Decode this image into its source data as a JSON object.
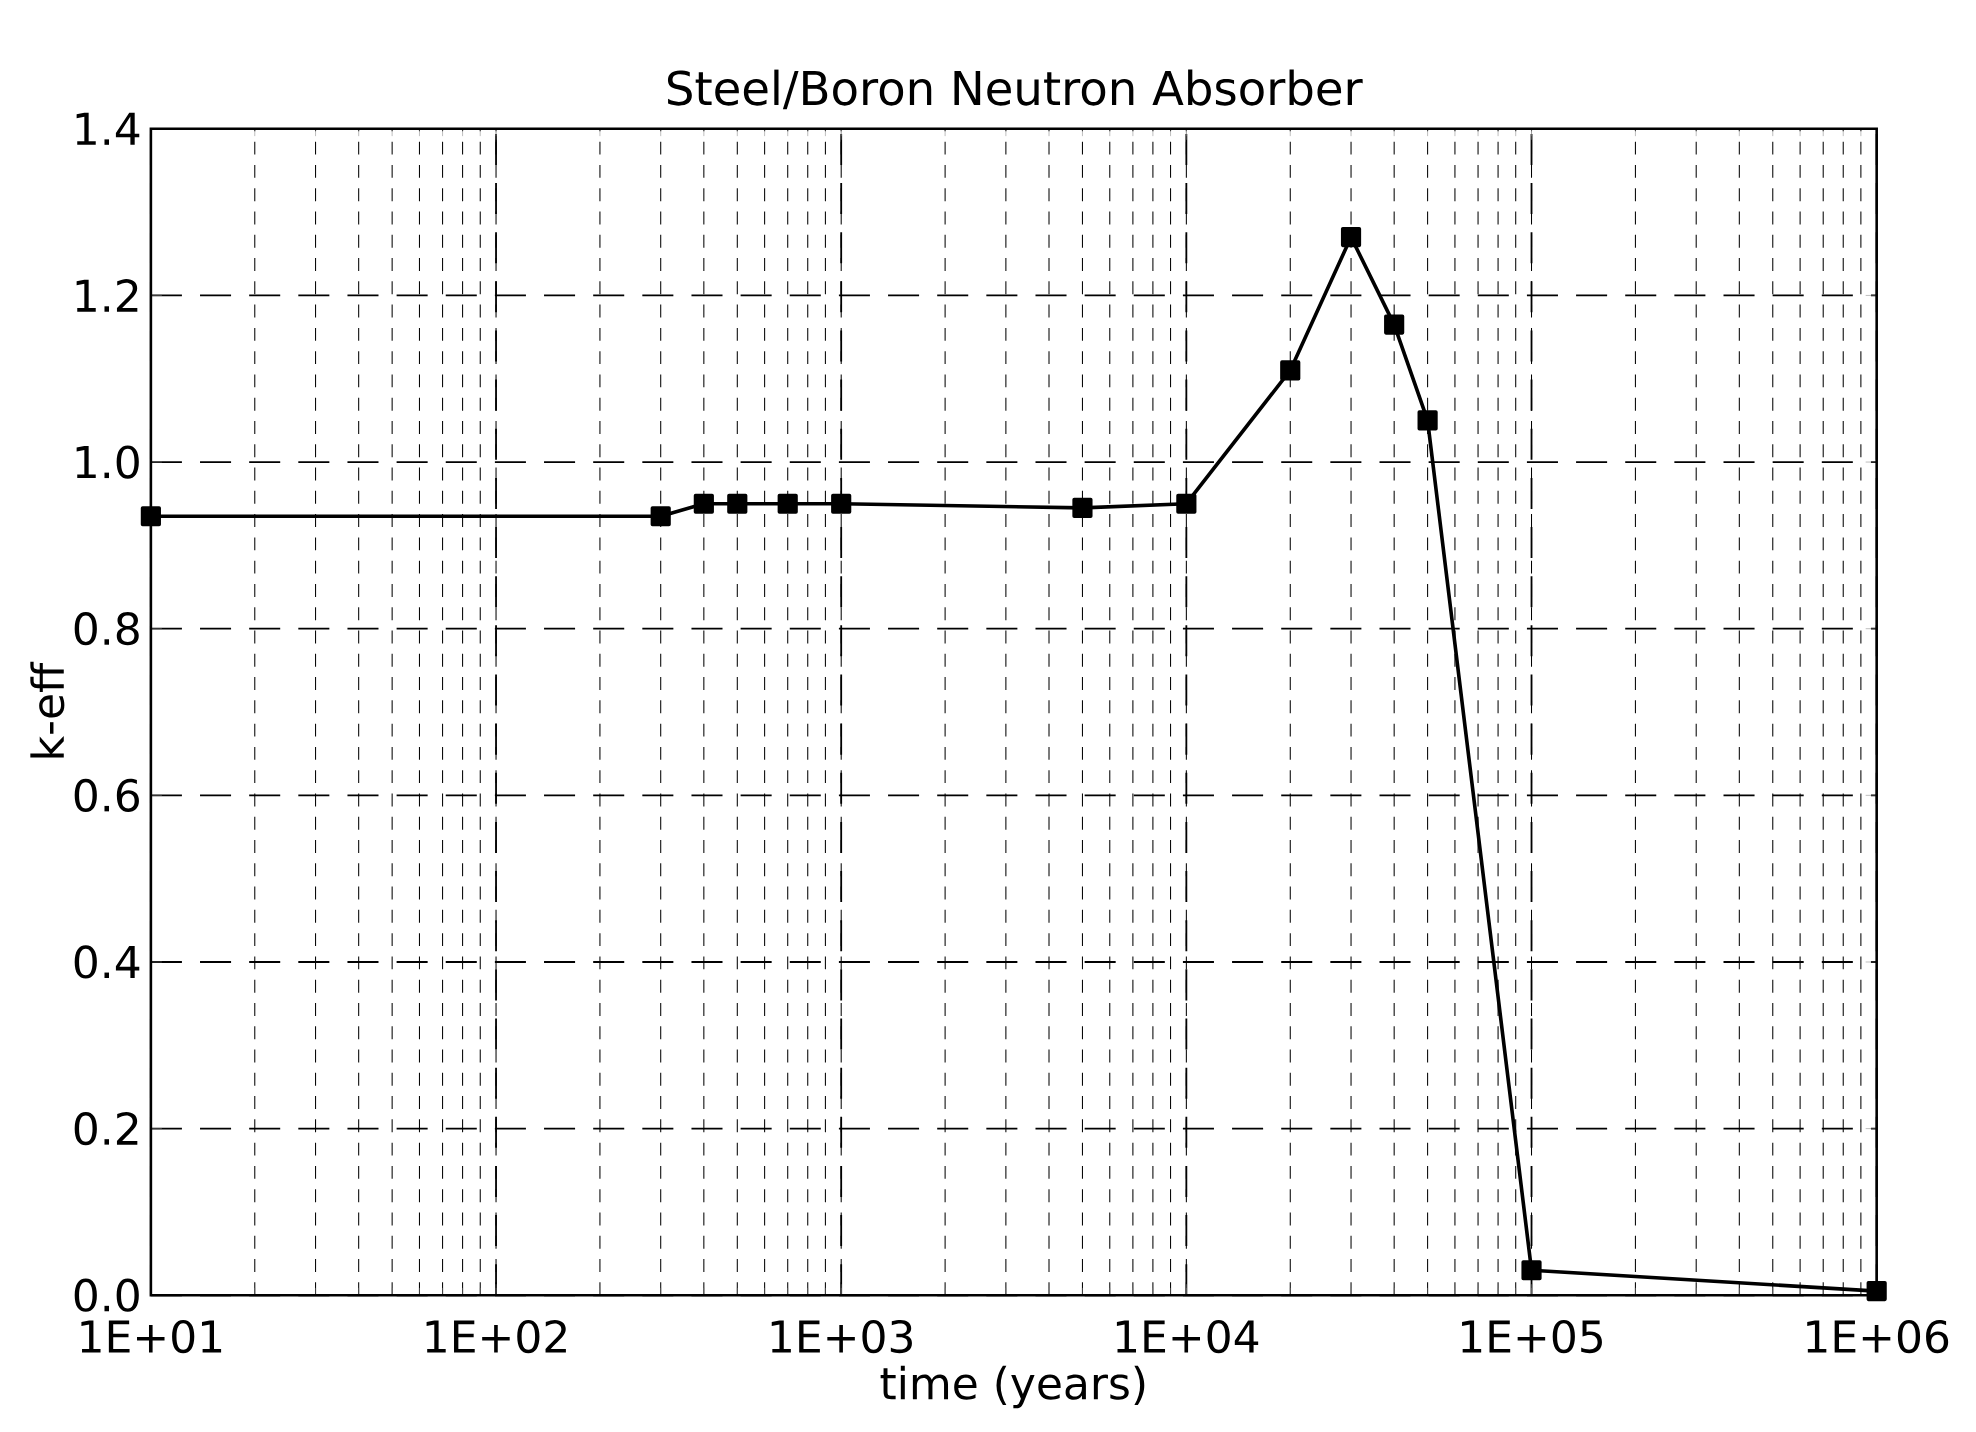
{
  "chart_data": {
    "type": "line",
    "title": "Steel/Boron Neutron Absorber",
    "xlabel": "time (years)",
    "ylabel": "k-eff",
    "log": "x",
    "x": [
      10,
      300,
      400,
      500,
      700,
      1000,
      5000,
      10000,
      20000,
      30000,
      40000,
      50000,
      100000,
      1000000
    ],
    "values": [
      0.935,
      0.935,
      0.95,
      0.95,
      0.95,
      0.95,
      0.945,
      0.95,
      1.11,
      1.27,
      1.165,
      1.05,
      0.03,
      0.005
    ],
    "color": "#000000",
    "marker": "square",
    "line_style": "solid",
    "grid": true,
    "xlim": [
      10,
      1000000
    ],
    "xticks": [
      {
        "value": 10,
        "label": "1E+01"
      },
      {
        "value": 100,
        "label": "1E+02"
      },
      {
        "value": 1000,
        "label": "1E+03"
      },
      {
        "value": 10000,
        "label": "1E+04"
      },
      {
        "value": 100000,
        "label": "1E+05"
      },
      {
        "value": 1000000,
        "label": "1E+06"
      }
    ],
    "ylim": [
      0,
      1.4
    ],
    "yticks": [
      {
        "value": 0,
        "label": "0.0"
      },
      {
        "value": 0.2,
        "label": "0.2"
      },
      {
        "value": 0.4,
        "label": "0.4"
      },
      {
        "value": 0.6,
        "label": "0.6"
      },
      {
        "value": 0.8,
        "label": "0.8"
      },
      {
        "value": 1.0,
        "label": "1.0"
      },
      {
        "value": 1.2,
        "label": "1.2"
      },
      {
        "value": 1.4,
        "label": "1.4"
      }
    ]
  }
}
